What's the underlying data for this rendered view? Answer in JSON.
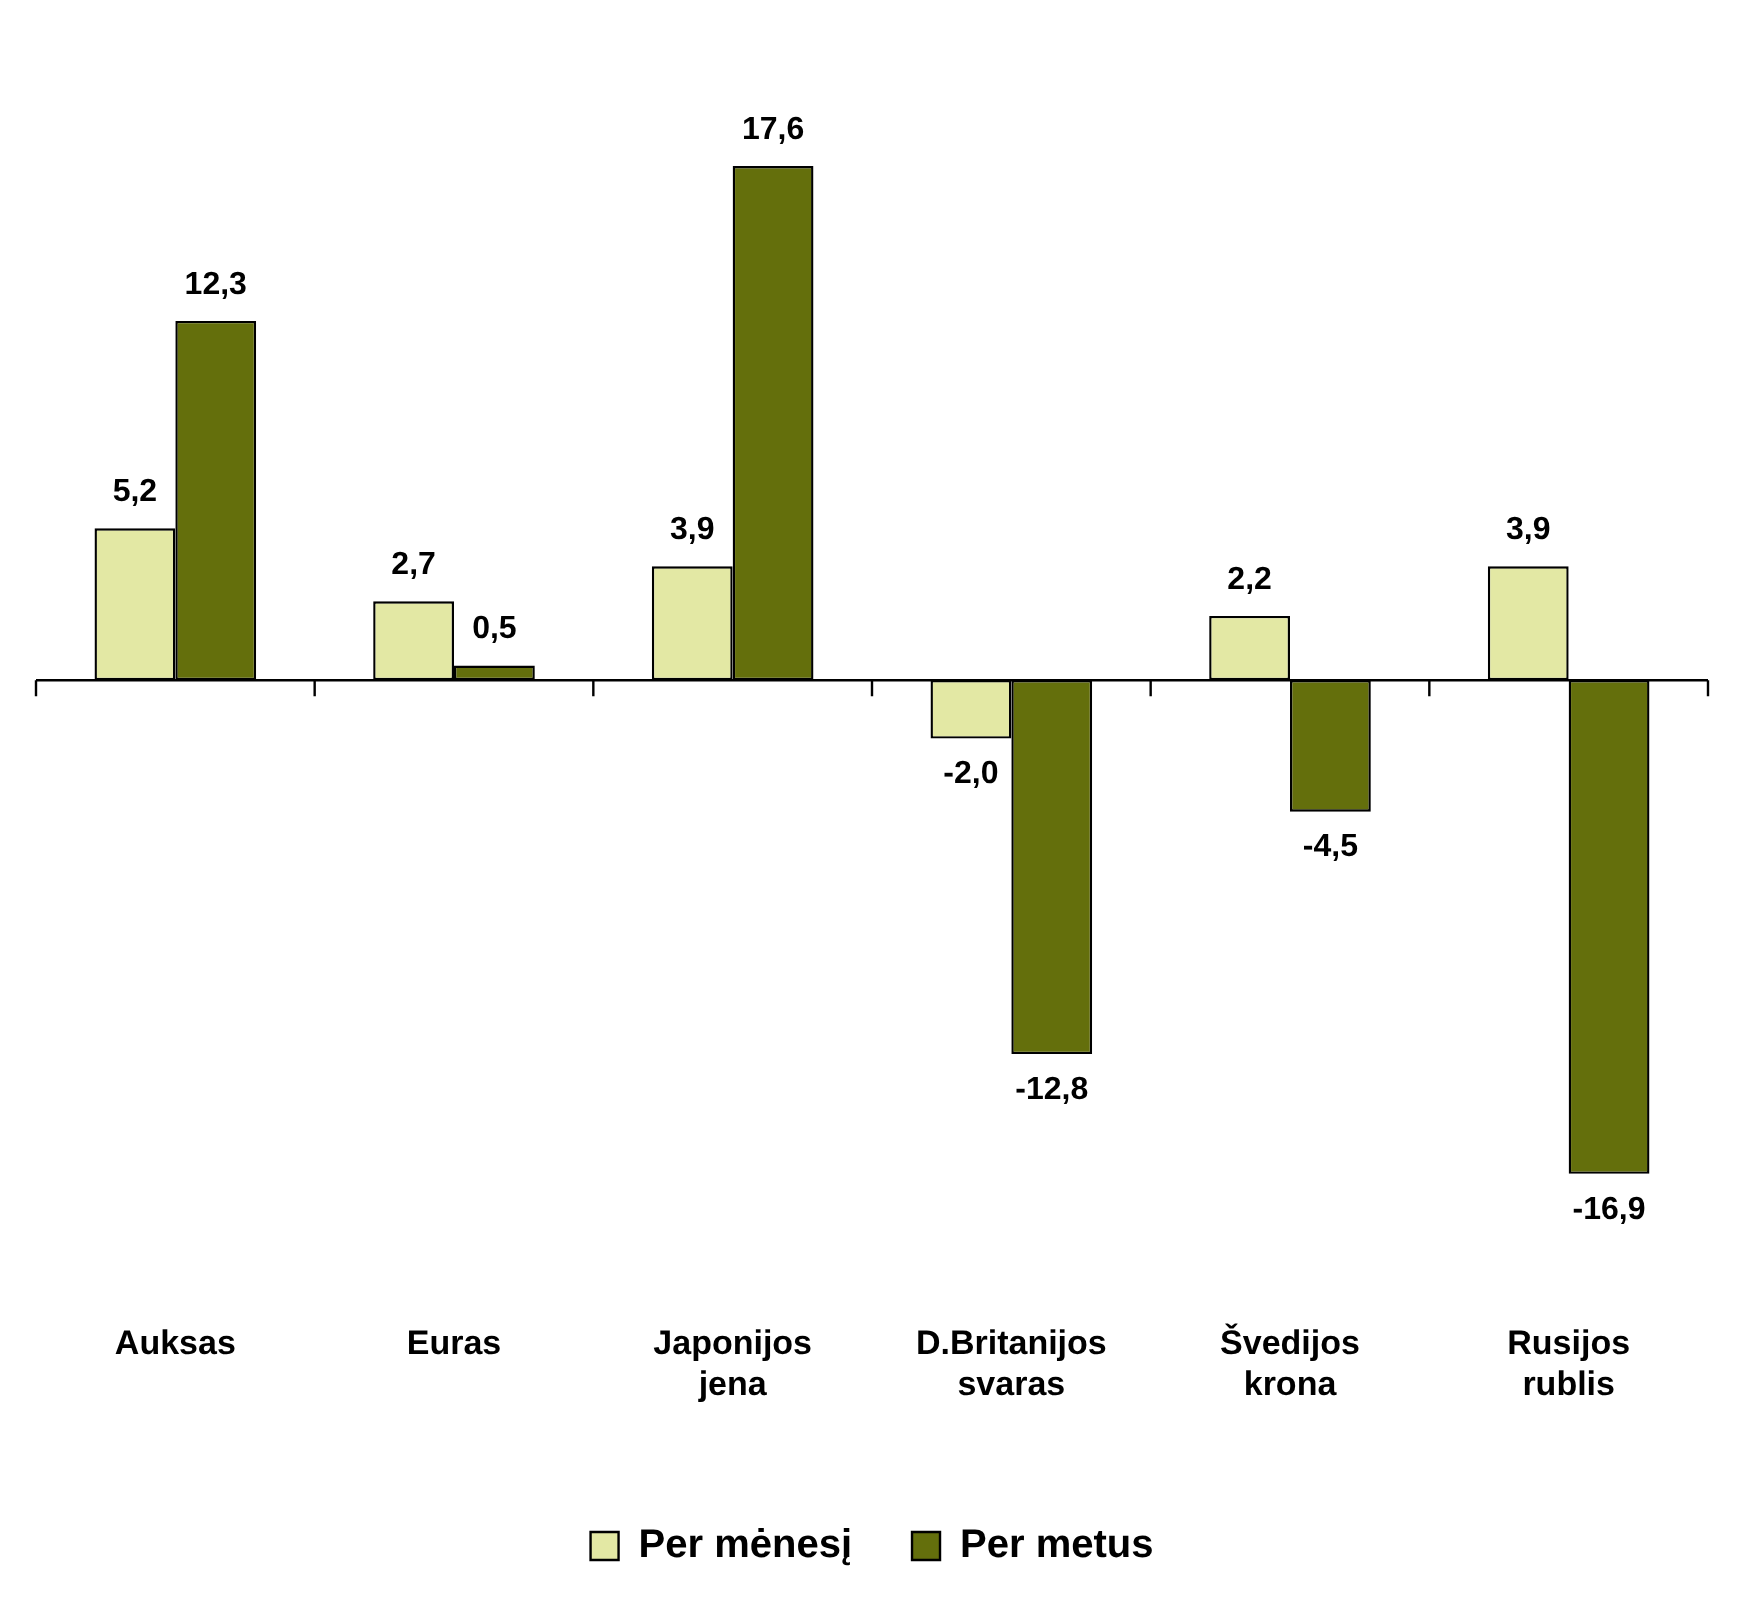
{
  "chart_data": {
    "type": "bar",
    "categories": [
      "Auksas",
      "Euras",
      "Japonijos jena",
      "D.Britanijos svaras",
      "Švedijos krona",
      "Rusijos rublis"
    ],
    "series": [
      {
        "name": "Per mėnesį",
        "color": "#e3e8a4",
        "values": [
          5.2,
          2.7,
          3.9,
          -2.0,
          2.2,
          3.9
        ],
        "value_labels": [
          "5,2",
          "2,7",
          "3,9",
          "-2,0",
          "2,2",
          "3,9"
        ]
      },
      {
        "name": "Per metus",
        "color": "#646f0c",
        "values": [
          12.3,
          0.5,
          17.6,
          -12.8,
          -4.5,
          -16.9
        ],
        "value_labels": [
          "12,3",
          "0,5",
          "17,6",
          "-12,8",
          "-4,5",
          "-16,9"
        ]
      }
    ],
    "legend": "bottom",
    "grid": false
  }
}
